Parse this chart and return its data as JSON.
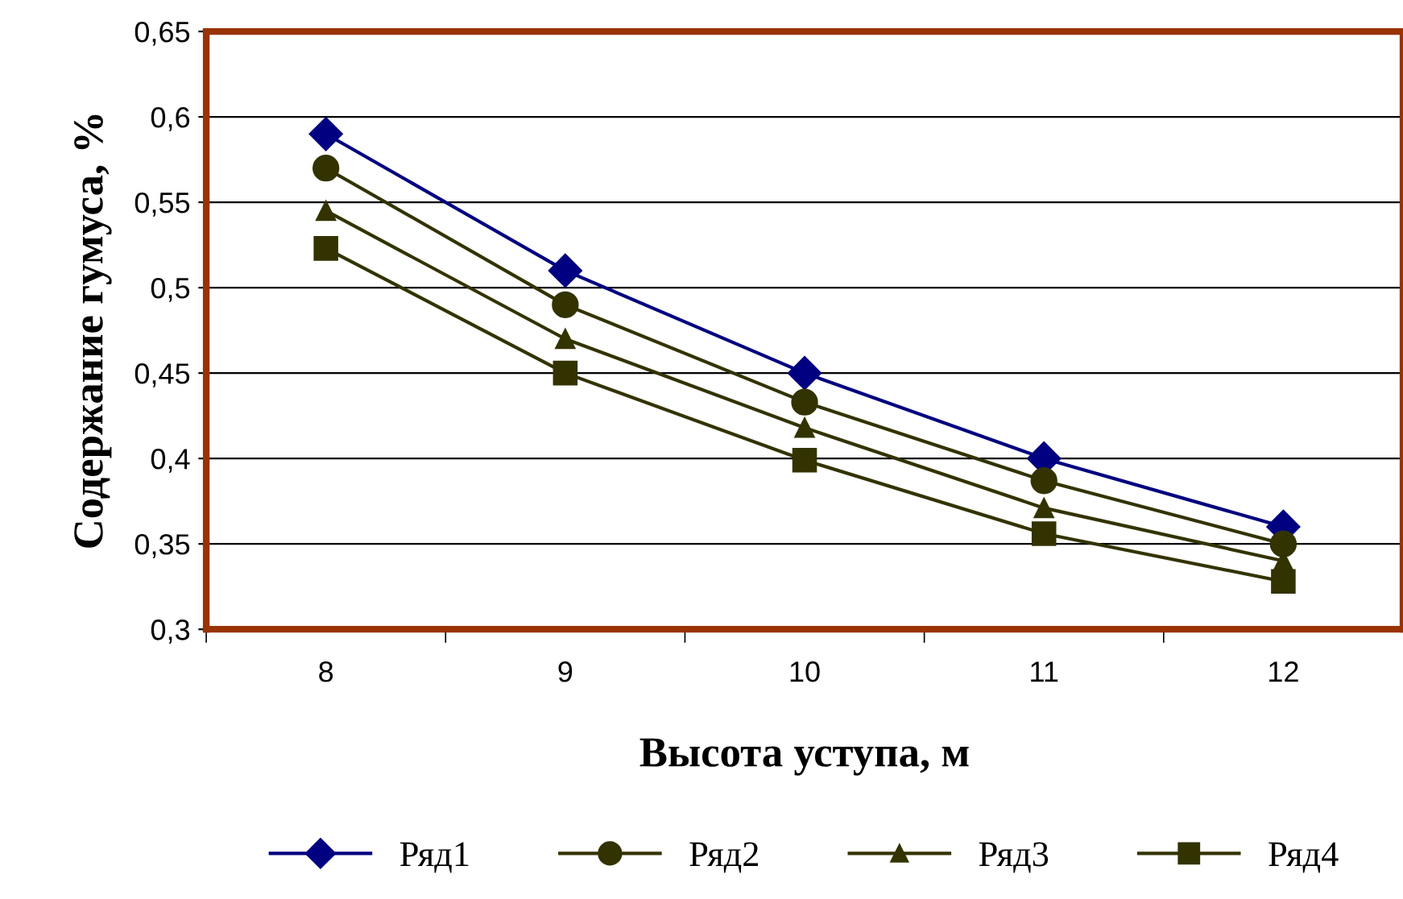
{
  "chart_data": {
    "type": "line",
    "xlabel": "Высота уступа, м",
    "ylabel": "Содержание гумуса, %",
    "categories": [
      "8",
      "9",
      "10",
      "11",
      "12"
    ],
    "series": [
      {
        "name": "Ряд1",
        "color": "#000080",
        "marker": "diamond",
        "values": [
          0.59,
          0.51,
          0.45,
          0.4,
          0.36
        ]
      },
      {
        "name": "Ряд2",
        "color": "#333300",
        "marker": "circle",
        "values": [
          0.57,
          0.49,
          0.433,
          0.387,
          0.35
        ]
      },
      {
        "name": "Ряд3",
        "color": "#333300",
        "marker": "triangle",
        "values": [
          0.545,
          0.47,
          0.418,
          0.371,
          0.34
        ]
      },
      {
        "name": "Ряд4",
        "color": "#333300",
        "marker": "square",
        "values": [
          0.523,
          0.45,
          0.399,
          0.356,
          0.328
        ]
      }
    ],
    "ylim": [
      0.3,
      0.65
    ],
    "yticks": [
      {
        "value": 0.3,
        "label": "0,3"
      },
      {
        "value": 0.35,
        "label": "0,35"
      },
      {
        "value": 0.4,
        "label": "0,4"
      },
      {
        "value": 0.45,
        "label": "0,45"
      },
      {
        "value": 0.5,
        "label": "0,5"
      },
      {
        "value": 0.55,
        "label": "0,55"
      },
      {
        "value": 0.6,
        "label": "0,6"
      },
      {
        "value": 0.65,
        "label": "0,65"
      }
    ],
    "grid": "y",
    "legend": "bottom",
    "line_style": "solid"
  }
}
